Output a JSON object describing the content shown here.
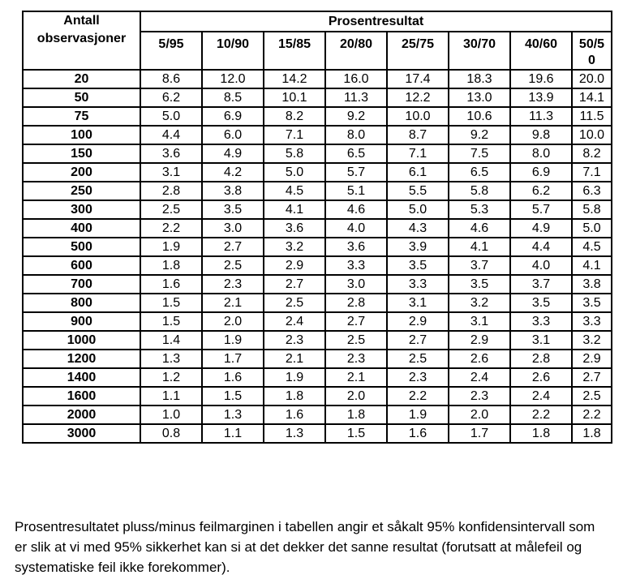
{
  "table": {
    "corner_header": "Antall observasjoner",
    "group_header": "Prosentresultat",
    "col_headers": [
      "5/95",
      "10/90",
      "15/85",
      "20/80",
      "25/75",
      "30/70",
      "40/60",
      "50/50"
    ],
    "rows": [
      {
        "label": "20",
        "values": [
          "8.6",
          "12.0",
          "14.2",
          "16.0",
          "17.4",
          "18.3",
          "19.6",
          "20.0"
        ]
      },
      {
        "label": "50",
        "values": [
          "6.2",
          "8.5",
          "10.1",
          "11.3",
          "12.2",
          "13.0",
          "13.9",
          "14.1"
        ]
      },
      {
        "label": "75",
        "values": [
          "5.0",
          "6.9",
          "8.2",
          "9.2",
          "10.0",
          "10.6",
          "11.3",
          "11.5"
        ]
      },
      {
        "label": "100",
        "values": [
          "4.4",
          "6.0",
          "7.1",
          "8.0",
          "8.7",
          "9.2",
          "9.8",
          "10.0"
        ]
      },
      {
        "label": "150",
        "values": [
          "3.6",
          "4.9",
          "5.8",
          "6.5",
          "7.1",
          "7.5",
          "8.0",
          "8.2"
        ]
      },
      {
        "label": "200",
        "values": [
          "3.1",
          "4.2",
          "5.0",
          "5.7",
          "6.1",
          "6.5",
          "6.9",
          "7.1"
        ]
      },
      {
        "label": "250",
        "values": [
          "2.8",
          "3.8",
          "4.5",
          "5.1",
          "5.5",
          "5.8",
          "6.2",
          "6.3"
        ]
      },
      {
        "label": "300",
        "values": [
          "2.5",
          "3.5",
          "4.1",
          "4.6",
          "5.0",
          "5.3",
          "5.7",
          "5.8"
        ]
      },
      {
        "label": "400",
        "values": [
          "2.2",
          "3.0",
          "3.6",
          "4.0",
          "4.3",
          "4.6",
          "4.9",
          "5.0"
        ]
      },
      {
        "label": "500",
        "values": [
          "1.9",
          "2.7",
          "3.2",
          "3.6",
          "3.9",
          "4.1",
          "4.4",
          "4.5"
        ]
      },
      {
        "label": "600",
        "values": [
          "1.8",
          "2.5",
          "2.9",
          "3.3",
          "3.5",
          "3.7",
          "4.0",
          "4.1"
        ]
      },
      {
        "label": "700",
        "values": [
          "1.6",
          "2.3",
          "2.7",
          "3.0",
          "3.3",
          "3.5",
          "3.7",
          "3.8"
        ]
      },
      {
        "label": "800",
        "values": [
          "1.5",
          "2.1",
          "2.5",
          "2.8",
          "3.1",
          "3.2",
          "3.5",
          "3.5"
        ]
      },
      {
        "label": "900",
        "values": [
          "1.5",
          "2.0",
          "2.4",
          "2.7",
          "2.9",
          "3.1",
          "3.3",
          "3.3"
        ]
      },
      {
        "label": "1000",
        "values": [
          "1.4",
          "1.9",
          "2.3",
          "2.5",
          "2.7",
          "2.9",
          "3.1",
          "3.2"
        ]
      },
      {
        "label": "1200",
        "values": [
          "1.3",
          "1.7",
          "2.1",
          "2.3",
          "2.5",
          "2.6",
          "2.8",
          "2.9"
        ]
      },
      {
        "label": "1400",
        "values": [
          "1.2",
          "1.6",
          "1.9",
          "2.1",
          "2.3",
          "2.4",
          "2.6",
          "2.7"
        ]
      },
      {
        "label": "1600",
        "values": [
          "1.1",
          "1.5",
          "1.8",
          "2.0",
          "2.2",
          "2.3",
          "2.4",
          "2.5"
        ]
      },
      {
        "label": "2000",
        "values": [
          "1.0",
          "1.3",
          "1.6",
          "1.8",
          "1.9",
          "2.0",
          "2.2",
          "2.2"
        ]
      },
      {
        "label": "3000",
        "values": [
          "0.8",
          "1.1",
          "1.3",
          "1.5",
          "1.6",
          "1.7",
          "1.8",
          "1.8"
        ]
      }
    ]
  },
  "footnote": {
    "text": "Prosentresultatet pluss/minus feilmarginen i tabellen angir et såkalt 95% konfidensintervall som er slik at vi med 95% sikkerhet kan si at det dekker det sanne resultat (forutsatt at målefeil og systematiske feil ikke forekommer)."
  },
  "chart_data": {
    "type": "table",
    "title": "Prosentresultat",
    "row_header": "Antall observasjoner",
    "columns": [
      "5/95",
      "10/90",
      "15/85",
      "20/80",
      "25/75",
      "30/70",
      "40/60",
      "50/50"
    ],
    "row_labels": [
      20,
      50,
      75,
      100,
      150,
      200,
      250,
      300,
      400,
      500,
      600,
      700,
      800,
      900,
      1000,
      1200,
      1400,
      1600,
      2000,
      3000
    ],
    "values": [
      [
        8.6,
        12.0,
        14.2,
        16.0,
        17.4,
        18.3,
        19.6,
        20.0
      ],
      [
        6.2,
        8.5,
        10.1,
        11.3,
        12.2,
        13.0,
        13.9,
        14.1
      ],
      [
        5.0,
        6.9,
        8.2,
        9.2,
        10.0,
        10.6,
        11.3,
        11.5
      ],
      [
        4.4,
        6.0,
        7.1,
        8.0,
        8.7,
        9.2,
        9.8,
        10.0
      ],
      [
        3.6,
        4.9,
        5.8,
        6.5,
        7.1,
        7.5,
        8.0,
        8.2
      ],
      [
        3.1,
        4.2,
        5.0,
        5.7,
        6.1,
        6.5,
        6.9,
        7.1
      ],
      [
        2.8,
        3.8,
        4.5,
        5.1,
        5.5,
        5.8,
        6.2,
        6.3
      ],
      [
        2.5,
        3.5,
        4.1,
        4.6,
        5.0,
        5.3,
        5.7,
        5.8
      ],
      [
        2.2,
        3.0,
        3.6,
        4.0,
        4.3,
        4.6,
        4.9,
        5.0
      ],
      [
        1.9,
        2.7,
        3.2,
        3.6,
        3.9,
        4.1,
        4.4,
        4.5
      ],
      [
        1.8,
        2.5,
        2.9,
        3.3,
        3.5,
        3.7,
        4.0,
        4.1
      ],
      [
        1.6,
        2.3,
        2.7,
        3.0,
        3.3,
        3.5,
        3.7,
        3.8
      ],
      [
        1.5,
        2.1,
        2.5,
        2.8,
        3.1,
        3.2,
        3.5,
        3.5
      ],
      [
        1.5,
        2.0,
        2.4,
        2.7,
        2.9,
        3.1,
        3.3,
        3.3
      ],
      [
        1.4,
        1.9,
        2.3,
        2.5,
        2.7,
        2.9,
        3.1,
        3.2
      ],
      [
        1.3,
        1.7,
        2.1,
        2.3,
        2.5,
        2.6,
        2.8,
        2.9
      ],
      [
        1.2,
        1.6,
        1.9,
        2.1,
        2.3,
        2.4,
        2.6,
        2.7
      ],
      [
        1.1,
        1.5,
        1.8,
        2.0,
        2.2,
        2.3,
        2.4,
        2.5
      ],
      [
        1.0,
        1.3,
        1.6,
        1.8,
        1.9,
        2.0,
        2.2,
        2.2
      ],
      [
        0.8,
        1.1,
        1.3,
        1.5,
        1.6,
        1.7,
        1.8,
        1.8
      ]
    ]
  }
}
